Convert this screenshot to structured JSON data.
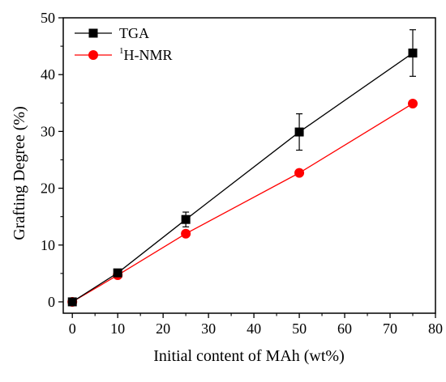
{
  "chart_data": {
    "type": "line",
    "xlabel": "Initial content of MAh (wt%)",
    "ylabel": "Grafting Degree (%)",
    "xlim": [
      -2,
      80
    ],
    "ylim": [
      -2,
      50
    ],
    "xticks": [
      0,
      10,
      20,
      30,
      40,
      50,
      60,
      70,
      80
    ],
    "yticks": [
      0,
      10,
      20,
      30,
      40,
      50
    ],
    "grid": false,
    "legend_position": "top-left",
    "series": [
      {
        "name": "TGA",
        "marker": "square",
        "color": "#000000",
        "x": [
          0,
          10,
          25,
          50,
          75
        ],
        "y": [
          0,
          5.1,
          14.5,
          29.9,
          43.8
        ],
        "error": [
          0,
          0.3,
          1.3,
          3.2,
          4.1
        ]
      },
      {
        "name_sup": "1",
        "name": "H-NMR",
        "marker": "circle",
        "color": "#ff0000",
        "x": [
          0,
          10,
          25,
          50,
          75
        ],
        "y": [
          0,
          4.7,
          12.0,
          22.7,
          34.9
        ]
      }
    ]
  }
}
